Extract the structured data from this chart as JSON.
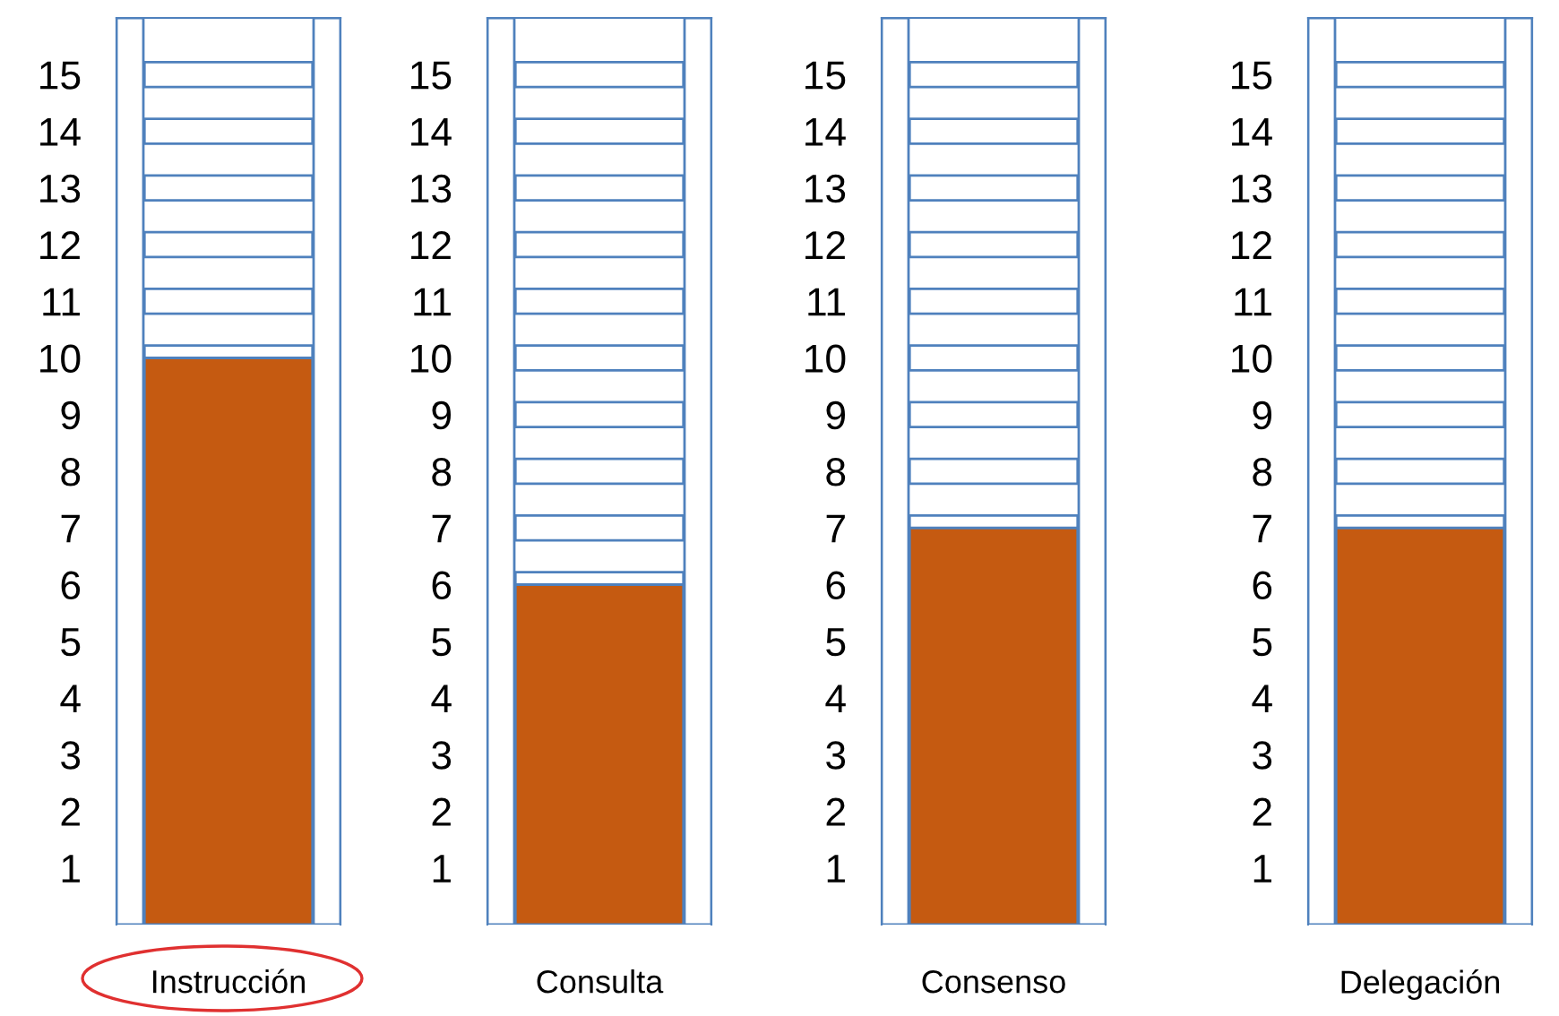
{
  "chart_data": [
    {
      "type": "bar",
      "categories": [
        "Instrucción"
      ],
      "values": [
        10
      ],
      "color": "#c55a11",
      "ylim": [
        0,
        16
      ],
      "yticks": [
        1,
        2,
        3,
        4,
        5,
        6,
        7,
        8,
        9,
        10,
        11,
        12,
        13,
        14,
        15
      ]
    },
    {
      "type": "bar",
      "categories": [
        "Consulta"
      ],
      "values": [
        6
      ],
      "color": "#c55a11",
      "ylim": [
        0,
        16
      ],
      "yticks": [
        1,
        2,
        3,
        4,
        5,
        6,
        7,
        8,
        9,
        10,
        11,
        12,
        13,
        14,
        15
      ]
    },
    {
      "type": "bar",
      "categories": [
        "Consenso"
      ],
      "values": [
        7
      ],
      "color": "#c55a11",
      "ylim": [
        0,
        16
      ],
      "yticks": [
        1,
        2,
        3,
        4,
        5,
        6,
        7,
        8,
        9,
        10,
        11,
        12,
        13,
        14,
        15
      ]
    },
    {
      "type": "bar",
      "categories": [
        "Delegación"
      ],
      "values": [
        7
      ],
      "color": "#c55a11",
      "ylim": [
        0,
        16
      ],
      "yticks": [
        1,
        2,
        3,
        4,
        5,
        6,
        7,
        8,
        9,
        10,
        11,
        12,
        13,
        14,
        15
      ]
    }
  ]
}
